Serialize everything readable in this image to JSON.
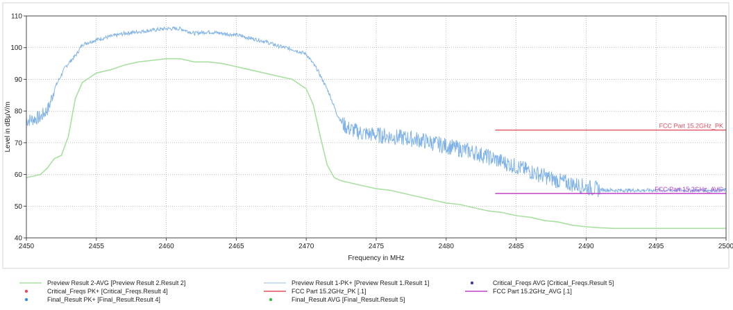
{
  "chart_data": {
    "type": "line",
    "xlabel": "Frequency in MHz",
    "ylabel": "Level in dBµV/m",
    "xlim": [
      2450,
      2500
    ],
    "ylim": [
      40,
      110
    ],
    "x_ticks": [
      "2450",
      "2455",
      "2460",
      "2465",
      "2470",
      "2475",
      "2480",
      "2485",
      "2490",
      "2495",
      "2500"
    ],
    "y_ticks": [
      "40",
      "50",
      "60",
      "70",
      "80",
      "90",
      "100",
      "110"
    ],
    "grid": "dotted",
    "series": [
      {
        "name": "Preview Result 1-PK+",
        "color": "#7fb2e8",
        "noisy": true,
        "x": [
          2450,
          2451,
          2451.6,
          2452,
          2452.8,
          2453.6,
          2454,
          2455,
          2456,
          2457,
          2458,
          2459,
          2460,
          2461,
          2462,
          2463,
          2464,
          2465,
          2466,
          2467,
          2468,
          2469,
          2470,
          2470.8,
          2471.6,
          2472.2,
          2472.6,
          2473,
          2474,
          2475,
          2476,
          2477,
          2478,
          2479,
          2480,
          2481,
          2482,
          2483,
          2484,
          2485,
          2486,
          2487,
          2488,
          2489,
          2490,
          2491,
          2492,
          2493,
          2494,
          2495,
          2496,
          2497,
          2498,
          2499,
          2500
        ],
        "values": [
          77,
          78,
          81,
          87,
          94,
          98,
          101,
          102.5,
          103.5,
          104.5,
          105,
          105.5,
          106,
          106,
          104.5,
          105,
          104.5,
          104,
          103,
          102,
          100.5,
          99.5,
          98,
          93,
          86,
          79,
          76,
          74.5,
          73,
          72.5,
          72,
          71.5,
          71,
          70,
          69,
          68,
          67,
          65.5,
          64,
          62.5,
          61,
          59.5,
          58,
          57,
          56,
          55.2,
          55,
          55,
          55,
          55,
          55,
          55,
          55,
          55,
          55
        ]
      },
      {
        "name": "Preview Result 2-AVG",
        "color": "#a8e0a0",
        "noisy": false,
        "x": [
          2450,
          2451,
          2451.5,
          2452,
          2452.5,
          2453,
          2453.5,
          2454,
          2455,
          2456,
          2457,
          2458,
          2459,
          2460,
          2461,
          2462,
          2463,
          2464,
          2465,
          2466,
          2467,
          2468,
          2469,
          2470,
          2470.5,
          2471,
          2471.5,
          2472,
          2472.5,
          2473,
          2474,
          2475,
          2476,
          2477,
          2478,
          2479,
          2480,
          2481,
          2482,
          2483,
          2484,
          2485,
          2486,
          2487,
          2488,
          2489,
          2490,
          2491,
          2492,
          2493,
          2494,
          2495,
          2496,
          2497,
          2498,
          2499,
          2500
        ],
        "values": [
          59,
          60,
          62,
          65,
          66,
          72,
          84,
          89,
          92,
          93,
          94.5,
          95.5,
          96,
          96.5,
          96.5,
          95.5,
          95.5,
          95,
          94,
          93,
          92,
          91,
          90,
          87,
          82,
          72,
          63,
          59,
          58,
          57.5,
          56.5,
          55.5,
          55,
          54,
          53,
          52,
          51,
          50.5,
          49.5,
          48.5,
          48,
          47,
          46.5,
          45.5,
          45,
          44,
          43.5,
          43.2,
          43,
          43,
          43,
          43,
          43,
          43,
          43,
          43,
          43
        ]
      },
      {
        "name": "FCC Part 15.2GHz_PK",
        "color": "#e05060",
        "x": [
          2483.5,
          2500
        ],
        "values": [
          74,
          74
        ]
      },
      {
        "name": "FCC Part 15.2GHz_AVG",
        "color": "#c040c8",
        "x": [
          2483.5,
          2500
        ],
        "values": [
          54,
          54
        ]
      }
    ],
    "annotations": [
      "FCC Part 15.2GHz_PK",
      "FCC Part 15.2GHz_AVG"
    ],
    "legend_position": "bottom",
    "legend": [
      {
        "label": "Preview Result 2-AVG   [Preview Result 2.Result 2]",
        "symbol": "line",
        "color": "#a8e0a0"
      },
      {
        "label": "Preview Result 1-PK+   [Preview Result 1.Result 1]",
        "symbol": "line",
        "color": "#b8d4f0"
      },
      {
        "label": "Critical_Freqs AVG   [Critical_Freqs.Result 5]",
        "symbol": "dot",
        "color": "#4a3c8c"
      },
      {
        "label": "Critical_Freqs PK+   [Critical_Freqs.Result 4]",
        "symbol": "dot",
        "color": "#e05060"
      },
      {
        "label": "FCC Part 15.2GHz_PK   [.1]",
        "symbol": "line",
        "color": "#e05060"
      },
      {
        "label": "FCC Part 15.2GHz_AVG   [.1]",
        "symbol": "line",
        "color": "#c040c8"
      },
      {
        "label": "Final_Result PK+   [Final_Result.Result 4]",
        "symbol": "dot",
        "color": "#3a8ad8"
      },
      {
        "label": "Final_Result AVG   [Final_Result.Result 5]",
        "symbol": "dot",
        "color": "#3cb84a"
      }
    ]
  }
}
